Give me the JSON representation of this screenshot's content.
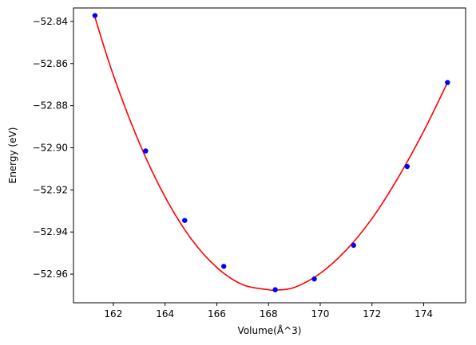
{
  "chart_data": {
    "type": "scatter",
    "title": "",
    "xlabel": "Volume(Å^3)",
    "ylabel": "Energy (eV)",
    "xlim": [
      160.46,
      175.62
    ],
    "ylim": [
      -52.9736,
      -52.8336
    ],
    "xticks": [
      162,
      164,
      166,
      168,
      170,
      172,
      174
    ],
    "xtick_labels": [
      "162",
      "164",
      "166",
      "168",
      "170",
      "172",
      "174"
    ],
    "yticks": [
      -52.84,
      -52.86,
      -52.88,
      -52.9,
      -52.92,
      -52.94,
      -52.96
    ],
    "ytick_labels": [
      "−52.84",
      "−52.86",
      "−52.88",
      "−52.90",
      "−52.92",
      "−52.94",
      "−52.96"
    ],
    "grid": false,
    "series": [
      {
        "kind": "points",
        "color": "#0000ff",
        "x": [
          161.29,
          163.25,
          164.76,
          166.27,
          168.26,
          169.77,
          171.29,
          173.36,
          174.92
        ],
        "y": [
          -52.8372,
          -52.9015,
          -52.9345,
          -52.9563,
          -52.9674,
          -52.9623,
          -52.9463,
          -52.9089,
          -52.869
        ]
      },
      {
        "kind": "fit-curve",
        "color": "#ff0000",
        "x": [
          161.29,
          162.0,
          163.0,
          164.0,
          165.0,
          166.0,
          167.0,
          168.0,
          168.26,
          169.0,
          170.0,
          171.0,
          172.0,
          173.0,
          174.0,
          174.92
        ],
        "y": [
          -52.838,
          -52.8655,
          -52.8975,
          -52.9233,
          -52.9431,
          -52.9568,
          -52.965,
          -52.9674,
          -52.9676,
          -52.9663,
          -52.9596,
          -52.9486,
          -52.9336,
          -52.9144,
          -52.8921,
          -52.869
        ]
      }
    ]
  }
}
